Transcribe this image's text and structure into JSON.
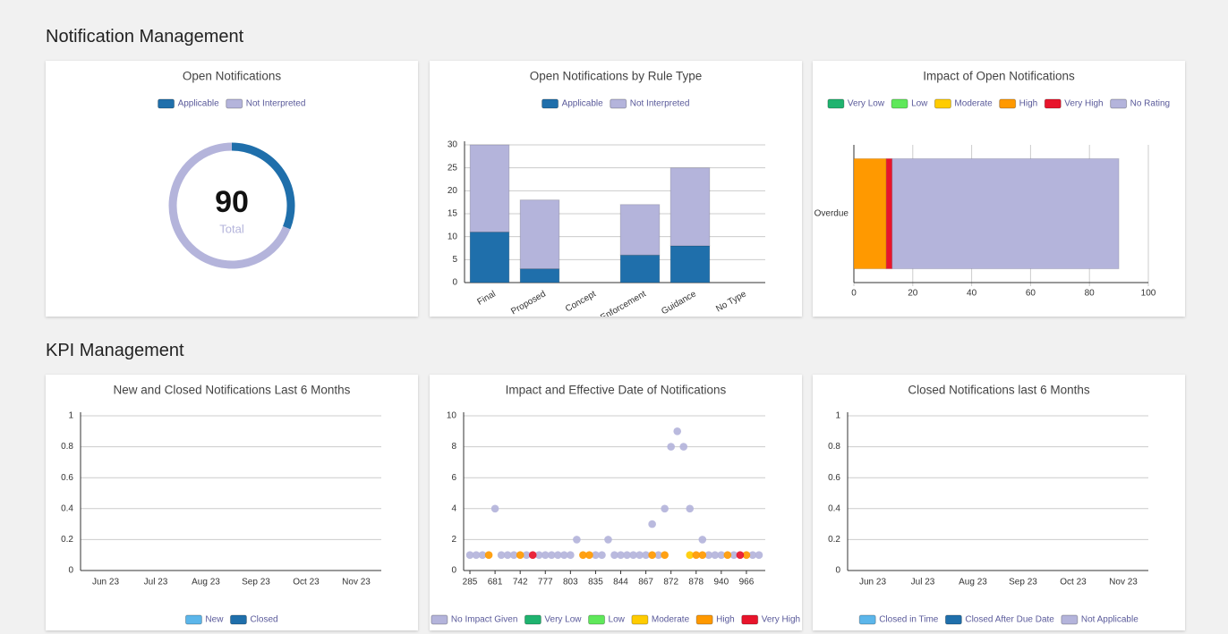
{
  "sections": [
    "Notification Management",
    "KPI Management"
  ],
  "chart_data": [
    {
      "type": "doughnut",
      "title": "Open Notifications",
      "categories": [
        "Applicable",
        "Not Interpreted"
      ],
      "values": [
        28,
        62
      ],
      "colors": [
        "#1f6fab",
        "#b4b4db"
      ],
      "center_value": 90,
      "center_label": "Total"
    },
    {
      "type": "bar",
      "title": "Open Notifications by Rule Type",
      "categories": [
        "Final",
        "Proposed",
        "Concept",
        "Enforcement",
        "Guidance",
        "No Type"
      ],
      "series": [
        {
          "name": "Applicable",
          "color": "#1f6fab",
          "values": [
            11,
            3,
            0,
            6,
            8,
            0
          ]
        },
        {
          "name": "Not Interpreted",
          "color": "#b4b4db",
          "values": [
            19,
            15,
            0,
            11,
            17,
            0
          ]
        }
      ],
      "stacked": true,
      "ylim": [
        0,
        30
      ],
      "yticks": [
        0,
        5,
        10,
        15,
        20,
        25,
        30
      ],
      "grid": true
    },
    {
      "type": "hbar",
      "title": "Impact of Open Notifications",
      "categories": [
        "Overdue"
      ],
      "series": [
        {
          "name": "Very Low",
          "color": "#1fb36f",
          "values": [
            0
          ]
        },
        {
          "name": "Low",
          "color": "#5fe85a",
          "values": [
            0
          ]
        },
        {
          "name": "Moderate",
          "color": "#ffcc00",
          "values": [
            0
          ]
        },
        {
          "name": "High",
          "color": "#ff9900",
          "values": [
            11
          ]
        },
        {
          "name": "Very High",
          "color": "#e8142b",
          "values": [
            2
          ]
        },
        {
          "name": "No Rating",
          "color": "#b4b4db",
          "values": [
            77
          ]
        }
      ],
      "stacked": true,
      "xlim": [
        0,
        100
      ],
      "xticks": [
        0,
        20,
        40,
        60,
        80,
        100
      ],
      "grid": true
    },
    {
      "type": "line",
      "title": "New and Closed Notifications Last 6 Months",
      "categories": [
        "Jun 23",
        "Jul 23",
        "Aug 23",
        "Sep 23",
        "Oct 23",
        "Nov 23"
      ],
      "series": [
        {
          "name": "New",
          "color": "#5cb6ea",
          "values": [
            null,
            null,
            null,
            null,
            null,
            null
          ]
        },
        {
          "name": "Closed",
          "color": "#1f6fab",
          "values": [
            null,
            null,
            null,
            null,
            null,
            null
          ]
        }
      ],
      "ylim": [
        0,
        1
      ],
      "yticks": [
        0,
        0.2,
        0.4,
        0.6,
        0.8,
        1
      ],
      "grid": true
    },
    {
      "type": "scatter",
      "title": "Impact and Effective Date of Notifications",
      "xlim": [
        -0.25,
        11.75
      ],
      "xticks": [
        {
          "value": 0,
          "label": "285"
        },
        {
          "value": 1,
          "label": "681"
        },
        {
          "value": 2,
          "label": "742"
        },
        {
          "value": 3,
          "label": "777"
        },
        {
          "value": 4,
          "label": "803"
        },
        {
          "value": 5,
          "label": "835"
        },
        {
          "value": 6,
          "label": "844"
        },
        {
          "value": 7,
          "label": "867"
        },
        {
          "value": 8,
          "label": "872"
        },
        {
          "value": 9,
          "label": "878"
        },
        {
          "value": 10,
          "label": "940"
        },
        {
          "value": 11,
          "label": "966"
        }
      ],
      "ylim": [
        0,
        10
      ],
      "yticks": [
        0,
        2,
        4,
        6,
        8,
        10
      ],
      "grid": true,
      "series": [
        {
          "name": "No Impact Given",
          "color": "#b4b4db",
          "x": [
            0,
            0.25,
            0.5,
            1.25,
            1.5,
            1.75,
            2.25,
            2.75,
            3,
            3.25,
            3.5,
            3.75,
            4,
            5,
            5.25,
            5.75,
            6,
            6.25,
            6.5,
            6.75,
            7,
            7.5,
            9.5,
            9.75,
            10,
            10.5,
            11.25,
            11.5,
            1,
            4.25,
            5.5,
            7.25,
            7.75,
            8,
            8.25,
            8.5,
            8.75,
            9.25
          ],
          "y": [
            1,
            1,
            1,
            1,
            1,
            1,
            1,
            1,
            1,
            1,
            1,
            1,
            1,
            1,
            1,
            1,
            1,
            1,
            1,
            1,
            1,
            1,
            1,
            1,
            1,
            1,
            1,
            1,
            4,
            2,
            2,
            3,
            4,
            8,
            9,
            8,
            4,
            2
          ]
        },
        {
          "name": "Very Low",
          "color": "#1fb36f",
          "x": [],
          "y": []
        },
        {
          "name": "Low",
          "color": "#5fe85a",
          "x": [],
          "y": []
        },
        {
          "name": "Moderate",
          "color": "#ffcc00",
          "x": [
            8.75
          ],
          "y": [
            1
          ]
        },
        {
          "name": "High",
          "color": "#ff9900",
          "x": [
            0.75,
            2,
            4.5,
            4.75,
            7.25,
            7.75,
            9,
            9.25,
            10.25,
            11
          ],
          "y": [
            1,
            1,
            1,
            1,
            1,
            1,
            1,
            1,
            1,
            1
          ]
        },
        {
          "name": "Very High",
          "color": "#e8142b",
          "x": [
            2.5,
            10.75
          ],
          "y": [
            1,
            1
          ]
        }
      ]
    },
    {
      "type": "line",
      "title": "Closed Notifications last 6 Months",
      "categories": [
        "Jun 23",
        "Jul 23",
        "Aug 23",
        "Sep 23",
        "Oct 23",
        "Nov 23"
      ],
      "series": [
        {
          "name": "Closed in Time",
          "color": "#5cb6ea",
          "values": [
            null,
            null,
            null,
            null,
            null,
            null
          ]
        },
        {
          "name": "Closed After Due Date",
          "color": "#1f6fab",
          "values": [
            null,
            null,
            null,
            null,
            null,
            null
          ]
        },
        {
          "name": "Not Applicable",
          "color": "#b4b4db",
          "values": [
            null,
            null,
            null,
            null,
            null,
            null
          ]
        }
      ],
      "ylim": [
        0,
        1
      ],
      "yticks": [
        0,
        0.2,
        0.4,
        0.6,
        0.8,
        1
      ],
      "grid": true
    }
  ]
}
